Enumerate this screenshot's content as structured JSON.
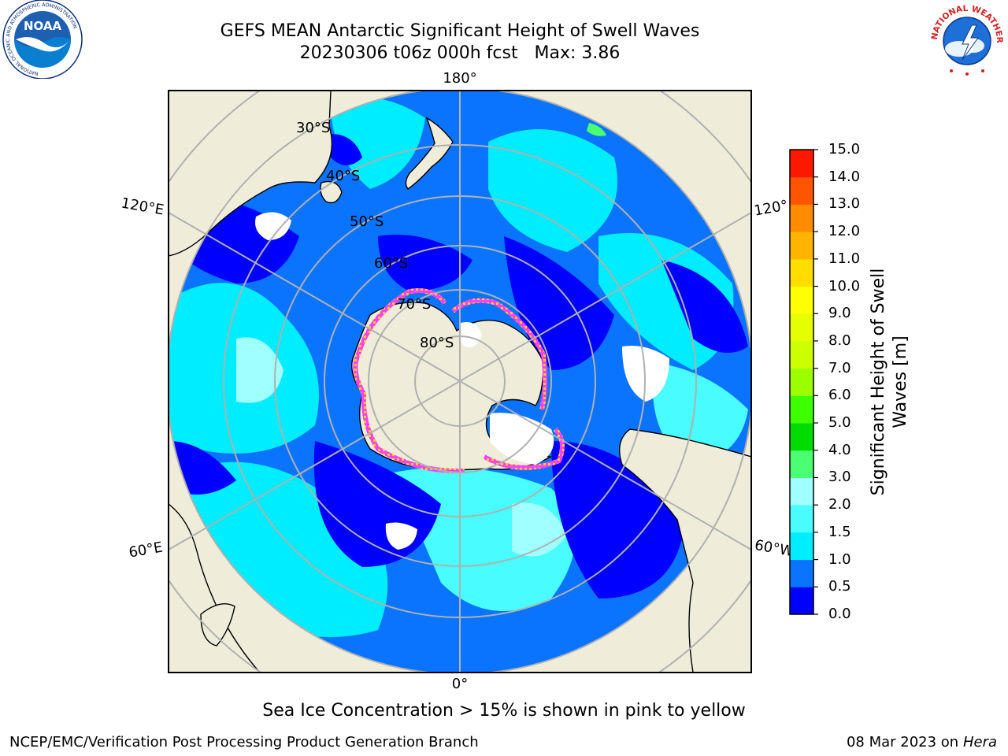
{
  "title": {
    "line1": "GEFS MEAN Antarctic Significant Height of Swell Waves",
    "line2": "20230306 t06z 000h fcst   Max: 3.86"
  },
  "logos": {
    "left": {
      "text": "NOAA",
      "ring_text": "NATIONAL OCEANIC AND ATMOSPHERIC ADMINISTRATION",
      "bottom_text": "U.S. DEPARTMENT OF COMMERCE",
      "icon": "noaa-logo-icon"
    },
    "right": {
      "ring_text": "NATIONAL WEATHER SERVICE",
      "icon": "nws-logo-icon"
    }
  },
  "map": {
    "projection": "south-polar-stereographic",
    "longitude_labels": {
      "top": "180°",
      "left_upper": "120°E",
      "right_upper": "120°",
      "left_lower": "60°E",
      "right_lower": "60°W",
      "bottom": "0°"
    },
    "latitude_labels": [
      "30°S",
      "40°S",
      "50°S",
      "60°S",
      "70°S",
      "80°S"
    ],
    "colors": {
      "land": "#efedda",
      "coast": "#000000",
      "grid": "#b0b0b0",
      "ice": "#ff40ff",
      "ice_edge": "#ffd000"
    }
  },
  "colorbar": {
    "ticks": [
      "0.0",
      "0.5",
      "1.0",
      "1.5",
      "2.0",
      "3.0",
      "4.0",
      "5.0",
      "6.0",
      "7.0",
      "8.0",
      "9.0",
      "10.0",
      "11.0",
      "12.0",
      "13.0",
      "14.0",
      "15.0"
    ],
    "colors": [
      "#0000ff",
      "#0b74ff",
      "#00ecff",
      "#48fcff",
      "#a0ffff",
      "#4bff73",
      "#00dc00",
      "#3cff00",
      "#9cff00",
      "#ccff00",
      "#e6ff00",
      "#ffff00",
      "#ffdd00",
      "#ffb400",
      "#ff8c00",
      "#ff5400",
      "#ff1800"
    ],
    "label_line1": "Significant Height of Swell",
    "label_line2": "Waves [m]"
  },
  "note": "Sea Ice Concentration > 15% is shown in pink to yellow",
  "footer": {
    "left": "NCEP/EMC/Verification Post Processing Product Generation Branch",
    "right_date": "08 Mar 2023 on",
    "right_machine": "Hera"
  }
}
